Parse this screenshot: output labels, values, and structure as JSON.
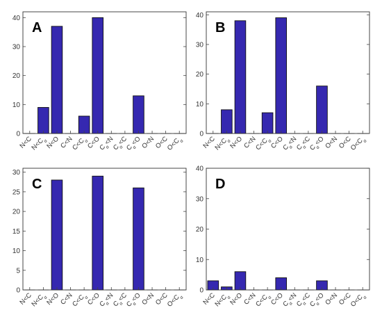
{
  "chart_data": [
    {
      "type": "bar",
      "panel_label": "A",
      "categories": [
        "N<C",
        "N<Cα",
        "N<O",
        "C<N",
        "C<Cα",
        "C<O",
        "Cα<N",
        "Cα<C",
        "Cα<O",
        "O<N",
        "O<C",
        "O<Cα"
      ],
      "values": [
        0,
        9,
        37,
        0,
        6,
        40,
        0,
        0,
        13,
        0,
        0,
        0
      ],
      "ylim": [
        0,
        42
      ],
      "yticks": [
        0,
        10,
        20,
        30,
        40
      ],
      "bar_color": "#3528b0"
    },
    {
      "type": "bar",
      "panel_label": "B",
      "categories": [
        "N<C",
        "N<Cα",
        "N<O",
        "C<N",
        "C<Cα",
        "C<O",
        "Cα<N",
        "Cα<C",
        "Cα<O",
        "O<N",
        "O<C",
        "O<Cα"
      ],
      "values": [
        0,
        8,
        38,
        0,
        7,
        39,
        0,
        0,
        16,
        0,
        0,
        0
      ],
      "ylim": [
        0,
        41
      ],
      "yticks": [
        0,
        10,
        20,
        30,
        40
      ],
      "bar_color": "#3528b0"
    },
    {
      "type": "bar",
      "panel_label": "C",
      "categories": [
        "N<C",
        "N<Cα",
        "N<O",
        "C<N",
        "C<Cα",
        "C<O",
        "Cα<N",
        "Cα<C",
        "Cα<O",
        "O<N",
        "O<C",
        "O<Cα"
      ],
      "values": [
        0,
        0,
        28,
        0,
        0,
        29,
        0,
        0,
        26,
        0,
        0,
        0
      ],
      "ylim": [
        0,
        31
      ],
      "yticks": [
        0,
        5,
        10,
        15,
        20,
        25,
        30
      ],
      "bar_color": "#3528b0"
    },
    {
      "type": "bar",
      "panel_label": "D",
      "categories": [
        "N<C",
        "N<Cα",
        "N<O",
        "C<N",
        "C<Cα",
        "C<O",
        "Cα<N",
        "Cα<C",
        "Cα<O",
        "O<N",
        "O<C",
        "O<Cα"
      ],
      "values": [
        3,
        1,
        6,
        0,
        0,
        4,
        0,
        0,
        3,
        0,
        0,
        0
      ],
      "ylim": [
        0,
        40
      ],
      "yticks": [
        0,
        10,
        20,
        30,
        40
      ],
      "bar_color": "#3528b0"
    }
  ]
}
